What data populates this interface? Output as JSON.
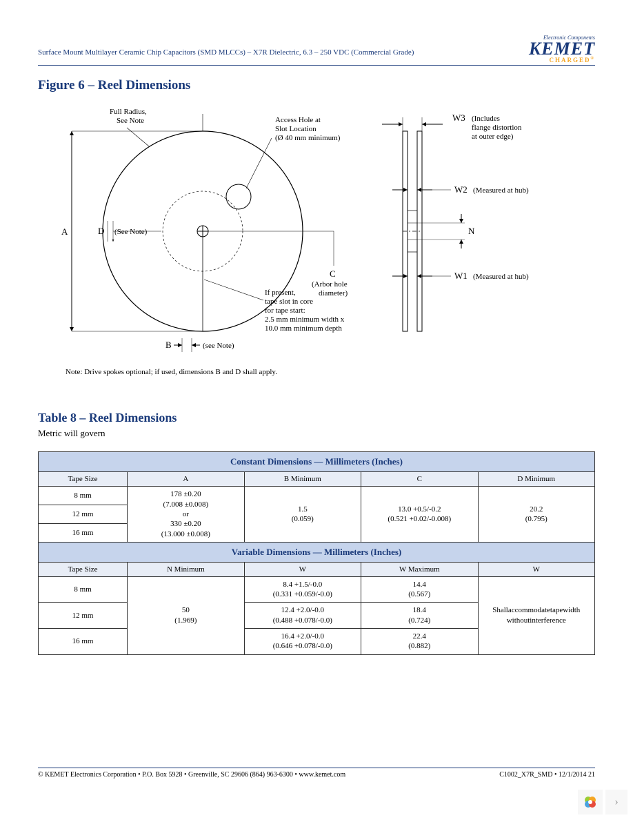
{
  "header": {
    "title": "Surface Mount Multilayer Ceramic Chip Capacitors (SMD MLCCs) – X7R Dielectric, 6.3 – 250 VDC (Commercial Grade)",
    "logo_tagline": "Electronic Components",
    "logo_main": "KEMET",
    "logo_sub": "CHARGED",
    "logo_color": "#1a3a7a",
    "logo_accent": "#f5a623"
  },
  "figure": {
    "title": "Figure 6 – Reel Dimensions",
    "labels": {
      "full_radius": "Full Radius,\nSee Note",
      "access_hole": "Access Hole at\nSlot Location\n(Ø 40 mm minimum)",
      "see_note_d": "(See Note)",
      "arbor": "(Arbor hole\ndiameter)",
      "tape_slot": "If present,\ntape slot in core\nfor tape start:\n2.5 mm minimum width x\n10.0 mm minimum depth",
      "see_note_b": "(see Note)",
      "w3": "(Includes\nflange distortion\nat outer edge)",
      "w2": "(Measured at hub)",
      "w1": "(Measured at hub)"
    },
    "dims": {
      "A": "A",
      "B": "B",
      "C": "C",
      "D": "D",
      "N": "N",
      "W1": "W1",
      "W2": "W2",
      "W3": "W3"
    },
    "note": "Note:  Drive spokes optional; if used, dimensions B and D shall apply.",
    "colors": {
      "line": "#000000",
      "dash": "#000000"
    }
  },
  "table": {
    "title": "Table 8 – Reel Dimensions",
    "subtitle": "Metric will govern",
    "header_bg": "#c6d4ec",
    "subheader_bg": "#e8edf6",
    "section1_title": "Constant Dimensions — Millimeters (Inches)",
    "section2_title": "Variable Dimensions — Millimeters (Inches)",
    "cols1": [
      "Tape Size",
      "A",
      "B Minimum",
      "C",
      "D Minimum"
    ],
    "cols2": [
      "Tape Size",
      "N Minimum",
      "W",
      "W  Maximum",
      "W"
    ],
    "tape_sizes": [
      "8 mm",
      "12 mm",
      "16 mm"
    ],
    "const": {
      "A": "178 ±0.20\n(7.008 ±0.008)\nor\n330 ±0.20\n(13.000 ±0.008)",
      "B": "1.5\n(0.059)",
      "C": "13.0 +0.5/-0.2\n(0.521 +0.02/-0.008)",
      "D": "20.2\n(0.795)"
    },
    "var": {
      "N": "50\n(1.969)",
      "W_rows": [
        "8.4 +1.5/-0.0\n(0.331 +0.059/-0.0)",
        "12.4 +2.0/-0.0\n(0.488 +0.078/-0.0)",
        "16.4 +2.0/-0.0\n(0.646 +0.078/-0.0)"
      ],
      "Wmax_rows": [
        "14.4\n(0.567)",
        "18.4\n(0.724)",
        "22.4\n(0.882)"
      ],
      "W_note": "Shallaccommodatetapewidth\nwithoutinterference"
    }
  },
  "footer": {
    "left": "© KEMET Electronics Corporation • P.O. Box 5928 • Greenville, SC 29606 (864) 963-6300 • www.kemet.com",
    "right": "C1002_X7R_SMD • 12/1/2014  21"
  },
  "widget": {
    "next": "›"
  }
}
